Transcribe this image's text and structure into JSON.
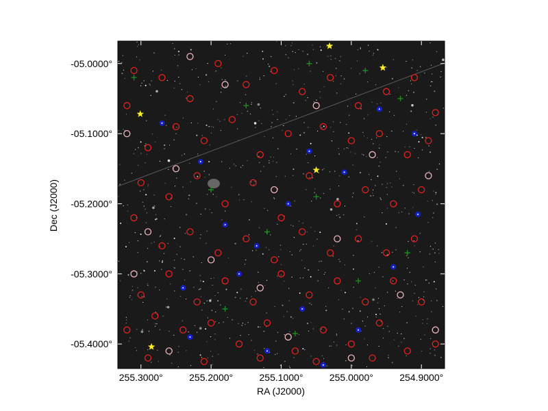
{
  "chart_data": {
    "type": "scatter",
    "xlabel": "RA (J2000)",
    "ylabel": "Dec (J2000)",
    "x_ticks": [
      "255.3000°",
      "255.2000°",
      "255.1000°",
      "255.0000°",
      "254.9000°"
    ],
    "y_ticks": [
      "-05.0000°",
      "-05.1000°",
      "-05.2000°",
      "-05.3000°",
      "-05.4000°"
    ],
    "x_tick_values": [
      255.3,
      255.2,
      255.1,
      255.0,
      254.9
    ],
    "y_tick_values": [
      -5.0,
      -5.1,
      -5.2,
      -5.3,
      -5.4
    ],
    "xlim": [
      255.333,
      254.867
    ],
    "ylim": [
      -5.435,
      -4.968
    ],
    "grid": false,
    "marker_colors": {
      "red_circle": "#e8201e",
      "pink_circle": "#f2b8bd",
      "blue_dot": "#1420c8",
      "green_cross": "#1e8c1e",
      "yellow_star": "#ffee22"
    },
    "series": [
      {
        "marker": "yellow-star",
        "points": [
          [
            255.031,
            -4.975
          ],
          [
            254.955,
            -5.006
          ],
          [
            255.301,
            -5.072
          ],
          [
            255.05,
            -5.152
          ],
          [
            255.285,
            -5.404
          ]
        ]
      },
      {
        "marker": "blue-dot",
        "points": [
          [
            255.27,
            -5.085
          ],
          [
            255.215,
            -5.14
          ],
          [
            255.18,
            -5.23
          ],
          [
            255.135,
            -5.26
          ],
          [
            255.09,
            -5.2
          ],
          [
            255.06,
            -5.125
          ],
          [
            255.01,
            -5.155
          ],
          [
            254.96,
            -5.065
          ],
          [
            254.905,
            -5.215
          ],
          [
            255.24,
            -5.32
          ],
          [
            255.16,
            -5.3
          ],
          [
            255.07,
            -5.35
          ],
          [
            254.99,
            -5.38
          ],
          [
            255.23,
            -5.39
          ],
          [
            254.94,
            -5.29
          ],
          [
            255.12,
            -5.41
          ],
          [
            255.04,
            -5.43
          ],
          [
            254.91,
            -5.1
          ]
        ]
      },
      {
        "marker": "green-cross",
        "points": [
          [
            255.06,
            -5.0
          ],
          [
            254.98,
            -5.01
          ],
          [
            254.93,
            -5.05
          ],
          [
            255.2,
            -5.18
          ],
          [
            255.12,
            -5.24
          ],
          [
            255.05,
            -5.19
          ],
          [
            254.99,
            -5.31
          ],
          [
            254.92,
            -5.27
          ],
          [
            255.18,
            -5.35
          ],
          [
            255.08,
            -5.385
          ],
          [
            255.31,
            -5.02
          ],
          [
            255.15,
            -5.06
          ]
        ]
      },
      {
        "marker": "pink-circle",
        "points": [
          [
            255.32,
            -5.1
          ],
          [
            255.25,
            -5.15
          ],
          [
            255.29,
            -5.24
          ],
          [
            255.2,
            -5.28
          ],
          [
            255.11,
            -5.18
          ],
          [
            255.05,
            -5.06
          ],
          [
            254.97,
            -5.13
          ],
          [
            254.89,
            -5.16
          ],
          [
            254.93,
            -5.33
          ],
          [
            255.02,
            -5.25
          ],
          [
            255.13,
            -5.32
          ],
          [
            255.26,
            -5.41
          ],
          [
            255.18,
            -5.03
          ],
          [
            255.09,
            -5.39
          ],
          [
            254.88,
            -5.38
          ],
          [
            255.31,
            -5.3
          ],
          [
            255.0,
            -5.42
          ],
          [
            255.23,
            -4.99
          ]
        ]
      },
      {
        "marker": "red-circle",
        "points": [
          [
            255.31,
            -5.01
          ],
          [
            255.27,
            -5.02
          ],
          [
            255.23,
            -5.05
          ],
          [
            255.19,
            -5.0
          ],
          [
            255.15,
            -5.03
          ],
          [
            255.11,
            -5.01
          ],
          [
            255.07,
            -5.04
          ],
          [
            255.03,
            -5.02
          ],
          [
            254.99,
            -5.06
          ],
          [
            254.95,
            -5.04
          ],
          [
            254.91,
            -5.02
          ],
          [
            254.88,
            -5.07
          ],
          [
            255.32,
            -5.06
          ],
          [
            255.29,
            -5.12
          ],
          [
            255.25,
            -5.09
          ],
          [
            255.21,
            -5.11
          ],
          [
            255.17,
            -5.08
          ],
          [
            255.13,
            -5.13
          ],
          [
            255.09,
            -5.1
          ],
          [
            255.04,
            -5.09
          ],
          [
            255.0,
            -5.11
          ],
          [
            254.96,
            -5.1
          ],
          [
            254.92,
            -5.13
          ],
          [
            254.89,
            -5.11
          ],
          [
            255.3,
            -5.17
          ],
          [
            255.26,
            -5.19
          ],
          [
            255.22,
            -5.16
          ],
          [
            255.18,
            -5.2
          ],
          [
            255.14,
            -5.17
          ],
          [
            255.1,
            -5.22
          ],
          [
            255.06,
            -5.16
          ],
          [
            255.02,
            -5.2
          ],
          [
            254.98,
            -5.18
          ],
          [
            254.94,
            -5.2
          ],
          [
            254.9,
            -5.18
          ],
          [
            255.31,
            -5.22
          ],
          [
            255.27,
            -5.26
          ],
          [
            255.23,
            -5.24
          ],
          [
            255.19,
            -5.27
          ],
          [
            255.15,
            -5.25
          ],
          [
            255.11,
            -5.28
          ],
          [
            255.07,
            -5.24
          ],
          [
            255.03,
            -5.27
          ],
          [
            254.99,
            -5.25
          ],
          [
            254.95,
            -5.27
          ],
          [
            254.91,
            -5.25
          ],
          [
            255.3,
            -5.33
          ],
          [
            255.26,
            -5.3
          ],
          [
            255.22,
            -5.34
          ],
          [
            255.18,
            -5.31
          ],
          [
            255.14,
            -5.34
          ],
          [
            255.1,
            -5.3
          ],
          [
            255.06,
            -5.33
          ],
          [
            255.02,
            -5.31
          ],
          [
            254.98,
            -5.34
          ],
          [
            254.94,
            -5.31
          ],
          [
            254.9,
            -5.34
          ],
          [
            255.32,
            -5.38
          ],
          [
            255.28,
            -5.36
          ],
          [
            255.24,
            -5.38
          ],
          [
            255.2,
            -5.37
          ],
          [
            255.16,
            -5.4
          ],
          [
            255.12,
            -5.37
          ],
          [
            255.08,
            -5.41
          ],
          [
            255.04,
            -5.38
          ],
          [
            255.0,
            -5.4
          ],
          [
            254.96,
            -5.37
          ],
          [
            254.92,
            -5.41
          ],
          [
            254.88,
            -5.4
          ],
          [
            255.29,
            -5.42
          ],
          [
            255.21,
            -5.425
          ],
          [
            255.13,
            -5.42
          ],
          [
            255.05,
            -5.425
          ],
          [
            254.97,
            -5.42
          ]
        ]
      }
    ]
  }
}
